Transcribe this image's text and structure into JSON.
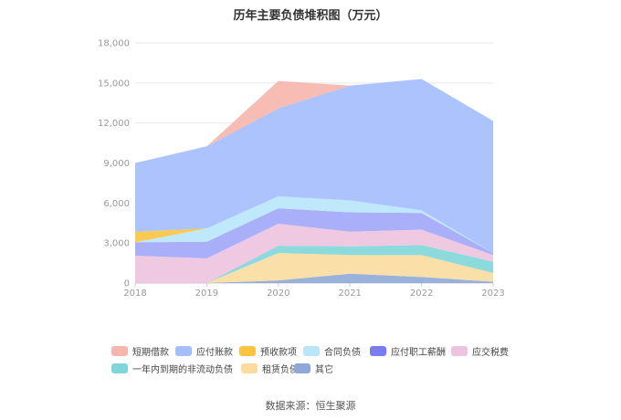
{
  "chart_data": {
    "type": "area",
    "stacked": true,
    "title": "历年主要负债堆积图（万元）",
    "x": [
      "2018",
      "2019",
      "2020",
      "2021",
      "2022",
      "2023"
    ],
    "y_ticks": [
      "0",
      "3,000",
      "6,000",
      "9,000",
      "12,000",
      "15,000",
      "18,000"
    ],
    "ylim": [
      0,
      18000
    ],
    "legend_position": "bottom",
    "grid": true,
    "series": [
      {
        "name": "其它",
        "color": "#8fa8d8",
        "values": [
          0,
          0,
          200,
          700,
          450,
          100
        ]
      },
      {
        "name": "租赁负债",
        "color": "#fbdba0",
        "values": [
          0,
          0,
          2050,
          1400,
          1650,
          650
        ]
      },
      {
        "name": "一年内到期的非流动负债",
        "color": "#7fd6d8",
        "values": [
          0,
          0,
          550,
          650,
          750,
          850
        ]
      },
      {
        "name": "应交税费",
        "color": "#edc3df",
        "values": [
          2050,
          1850,
          1650,
          1100,
          1150,
          500
        ]
      },
      {
        "name": "应付职工薪酬",
        "color": "#a0a6f7",
        "values": [
          1000,
          1250,
          1150,
          1450,
          1250,
          150
        ]
      },
      {
        "name": "合同负债",
        "color": "#b9e6fb",
        "values": [
          0,
          1000,
          900,
          900,
          200,
          0
        ]
      },
      {
        "name": "预收款项",
        "color": "#fbc441",
        "values": [
          800,
          0,
          0,
          0,
          0,
          0
        ]
      },
      {
        "name": "应付账款",
        "color": "#a4bdfd",
        "values": [
          5150,
          6150,
          6600,
          8600,
          9850,
          9900
        ]
      },
      {
        "name": "短期借款",
        "color": "#f6b6ad",
        "values": [
          0,
          0,
          2050,
          0,
          0,
          0
        ]
      }
    ]
  },
  "legend_order": [
    {
      "name": "短期借款",
      "color": "#f6b6ad"
    },
    {
      "name": "应付账款",
      "color": "#a4bdfd"
    },
    {
      "name": "预收款项",
      "color": "#fbc441"
    },
    {
      "name": "合同负债",
      "color": "#b9e6fb"
    },
    {
      "name": "应付职工薪酬",
      "color": "#7b7cf2"
    },
    {
      "name": "应交税费",
      "color": "#edc3df"
    },
    {
      "name": "一年内到期的非流动负债",
      "color": "#7fd6d8"
    },
    {
      "name": "租赁负债",
      "color": "#fbdba0"
    },
    {
      "name": "其它",
      "color": "#8fa8d8"
    }
  ],
  "source": "数据来源：恒生聚源"
}
